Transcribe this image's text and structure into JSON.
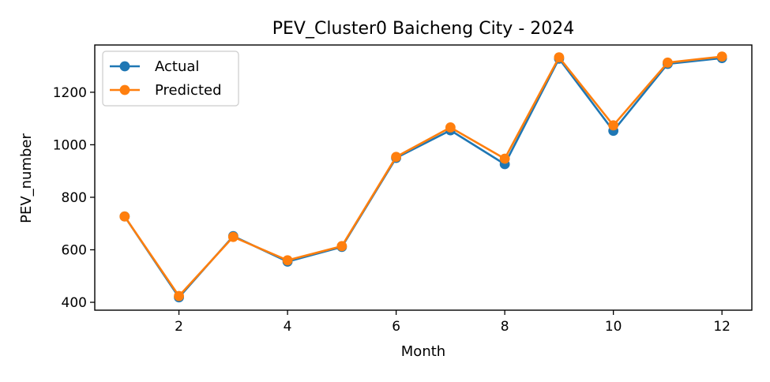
{
  "chart_data": {
    "type": "line",
    "title": "PEV_Cluster0 Baicheng City - 2024",
    "xlabel": "Month",
    "ylabel": "PEV_number",
    "x": [
      1,
      2,
      3,
      4,
      5,
      6,
      7,
      8,
      9,
      10,
      11,
      12
    ],
    "xlim": [
      0.45,
      12.55
    ],
    "ylim": [
      370,
      1380
    ],
    "xticks": [
      2,
      4,
      6,
      8,
      10,
      12
    ],
    "yticks": [
      400,
      600,
      800,
      1000,
      1200
    ],
    "grid": false,
    "legend_position": "top-left",
    "series": [
      {
        "name": "Actual",
        "color": "#1f77b4",
        "marker": "circle",
        "values": [
          727,
          419,
          652,
          555,
          611,
          950,
          1055,
          926,
          1328,
          1053,
          1308,
          1330
        ]
      },
      {
        "name": "Predicted",
        "color": "#ff7f0e",
        "marker": "circle",
        "values": [
          727,
          424,
          649,
          560,
          614,
          954,
          1066,
          947,
          1333,
          1074,
          1313,
          1336
        ]
      }
    ]
  }
}
